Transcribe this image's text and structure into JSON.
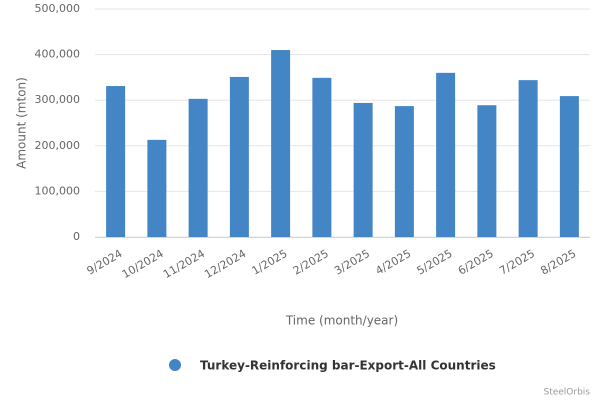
{
  "chart_data": {
    "type": "bar",
    "y_axis_title": "Amount (mton)",
    "x_axis_title": "Time (month/year)",
    "categories": [
      "9/2024",
      "10/2024",
      "11/2024",
      "12/2024",
      "1/2025",
      "2/2025",
      "3/2025",
      "4/2025",
      "5/2025",
      "6/2025",
      "7/2025",
      "8/2025"
    ],
    "series": [
      {
        "name": "Turkey-Reinforcing bar-Export-All Countries",
        "color": "#4385c5",
        "values": [
          331000,
          213000,
          303000,
          351000,
          410000,
          349000,
          294000,
          287000,
          360000,
          289000,
          344000,
          309000
        ]
      }
    ],
    "ylim": [
      0,
      500000
    ],
    "yticks": [
      0,
      {
        "value": 100000,
        "label": "100,000"
      },
      {
        "value": 200000,
        "label": "200,000"
      },
      {
        "value": 300000,
        "label": "300,000"
      },
      {
        "value": 400000,
        "label": "400,000"
      },
      {
        "value": 500000,
        "label": "500,000"
      }
    ],
    "grid": true,
    "credits": "SteelOrbis"
  }
}
